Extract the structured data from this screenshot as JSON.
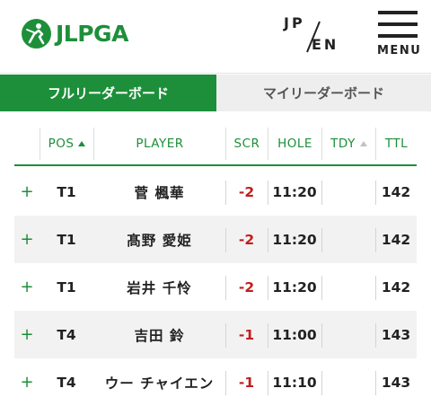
{
  "brand": {
    "logo_text": "JLPGA",
    "accent": "#1d8f3a",
    "score_color": "#c21d1d"
  },
  "header": {
    "lang_jp": "JP",
    "lang_en": "EN",
    "menu_label": "MENU"
  },
  "tabs": [
    {
      "label": "フルリーダーボード",
      "active": true
    },
    {
      "label": "マイリーダーボード",
      "active": false
    }
  ],
  "columns": {
    "pos": "POS",
    "player": "PLAYER",
    "scr": "SCR",
    "hole": "HOLE",
    "tdy": "TDY",
    "ttl": "TTL"
  },
  "rows": [
    {
      "expand": "+",
      "pos": "T1",
      "player": "菅 楓華",
      "scr": "-2",
      "hole": "11:20",
      "tdy": "",
      "ttl": "142"
    },
    {
      "expand": "+",
      "pos": "T1",
      "player": "髙野 愛姫",
      "scr": "-2",
      "hole": "11:20",
      "tdy": "",
      "ttl": "142"
    },
    {
      "expand": "+",
      "pos": "T1",
      "player": "岩井 千怜",
      "scr": "-2",
      "hole": "11:20",
      "tdy": "",
      "ttl": "142"
    },
    {
      "expand": "+",
      "pos": "T4",
      "player": "吉田 鈴",
      "scr": "-1",
      "hole": "11:00",
      "tdy": "",
      "ttl": "143"
    },
    {
      "expand": "+",
      "pos": "T4",
      "player": "ウー チャイエン",
      "scr": "-1",
      "hole": "11:10",
      "tdy": "",
      "ttl": "143"
    }
  ]
}
